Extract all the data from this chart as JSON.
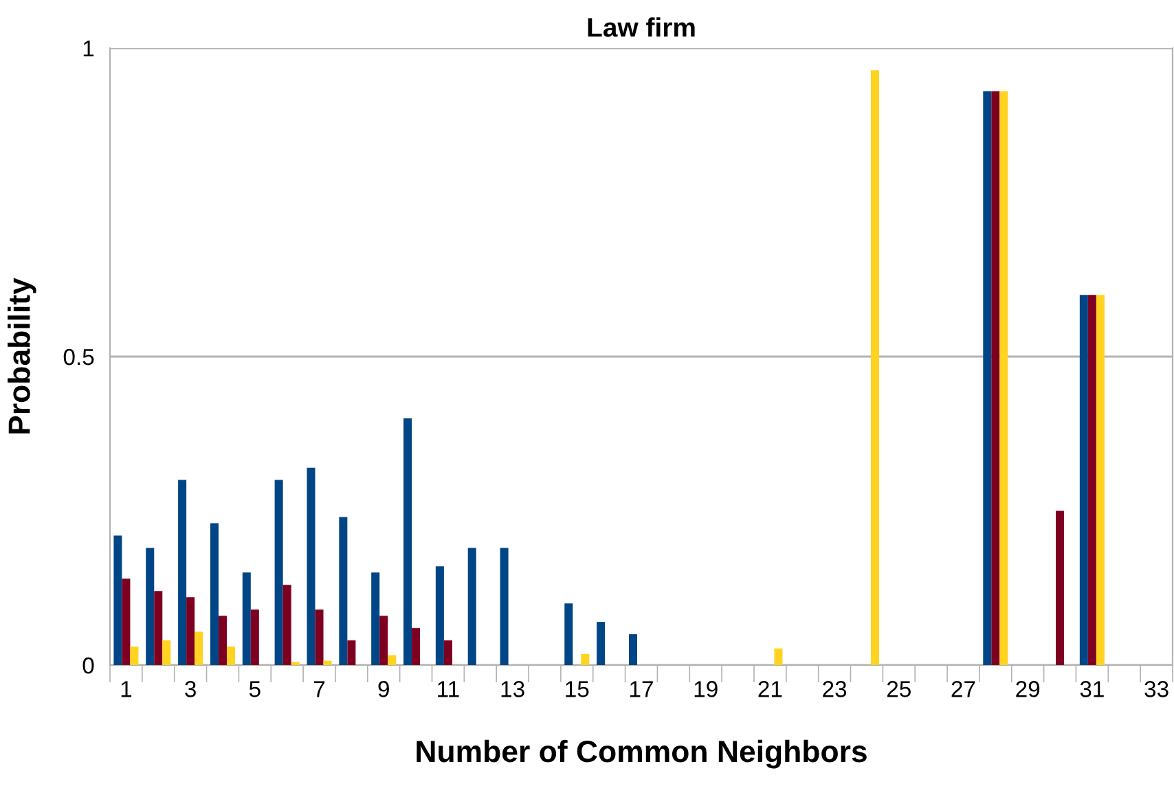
{
  "chart_data": {
    "type": "bar",
    "title": "Law firm",
    "xlabel": "Number of Common Neighbors",
    "ylabel": "Probability",
    "categories": [
      "1",
      null,
      "3",
      null,
      "5",
      null,
      "7",
      null,
      "9",
      null,
      "11",
      null,
      "13",
      null,
      "15",
      null,
      "17",
      null,
      "19",
      null,
      "21",
      null,
      "23",
      null,
      "25",
      null,
      "27",
      null,
      "29",
      null,
      "31",
      null,
      "33"
    ],
    "series": [
      {
        "color": "#004586",
        "values": [
          0.21,
          0.19,
          0.3,
          0.23,
          0.15,
          0.3,
          0.32,
          0.24,
          0.15,
          0.4,
          0.16,
          0.19,
          0.19,
          0,
          0.1,
          0.07,
          0.05,
          0,
          0,
          0,
          0,
          0,
          0,
          0,
          0,
          0,
          0,
          0.93,
          0,
          0,
          0.6,
          0,
          0
        ]
      },
      {
        "color": "#7e0021",
        "values": [
          0.14,
          0.12,
          0.11,
          0.08,
          0.09,
          0.13,
          0.09,
          0.04,
          0.08,
          0.06,
          0.04,
          0,
          0,
          0,
          0,
          0,
          0,
          0,
          0,
          0,
          0,
          0,
          0,
          0,
          0,
          0,
          0,
          0.93,
          0,
          0.25,
          0.6,
          0,
          0
        ]
      },
      {
        "color": "#ffd320",
        "values": [
          0.03,
          0.04,
          0.054,
          0.03,
          0,
          0.005,
          0.007,
          0,
          0.016,
          0,
          0,
          0,
          0,
          0,
          0.018,
          0,
          0,
          0,
          0,
          0,
          0.027,
          0,
          0,
          0.964,
          0,
          0,
          0,
          0.93,
          0,
          0,
          0.6,
          0,
          0
        ]
      }
    ],
    "ylim": [
      0,
      1
    ],
    "yticks": [
      0,
      0.5,
      1
    ],
    "grid": "y"
  }
}
